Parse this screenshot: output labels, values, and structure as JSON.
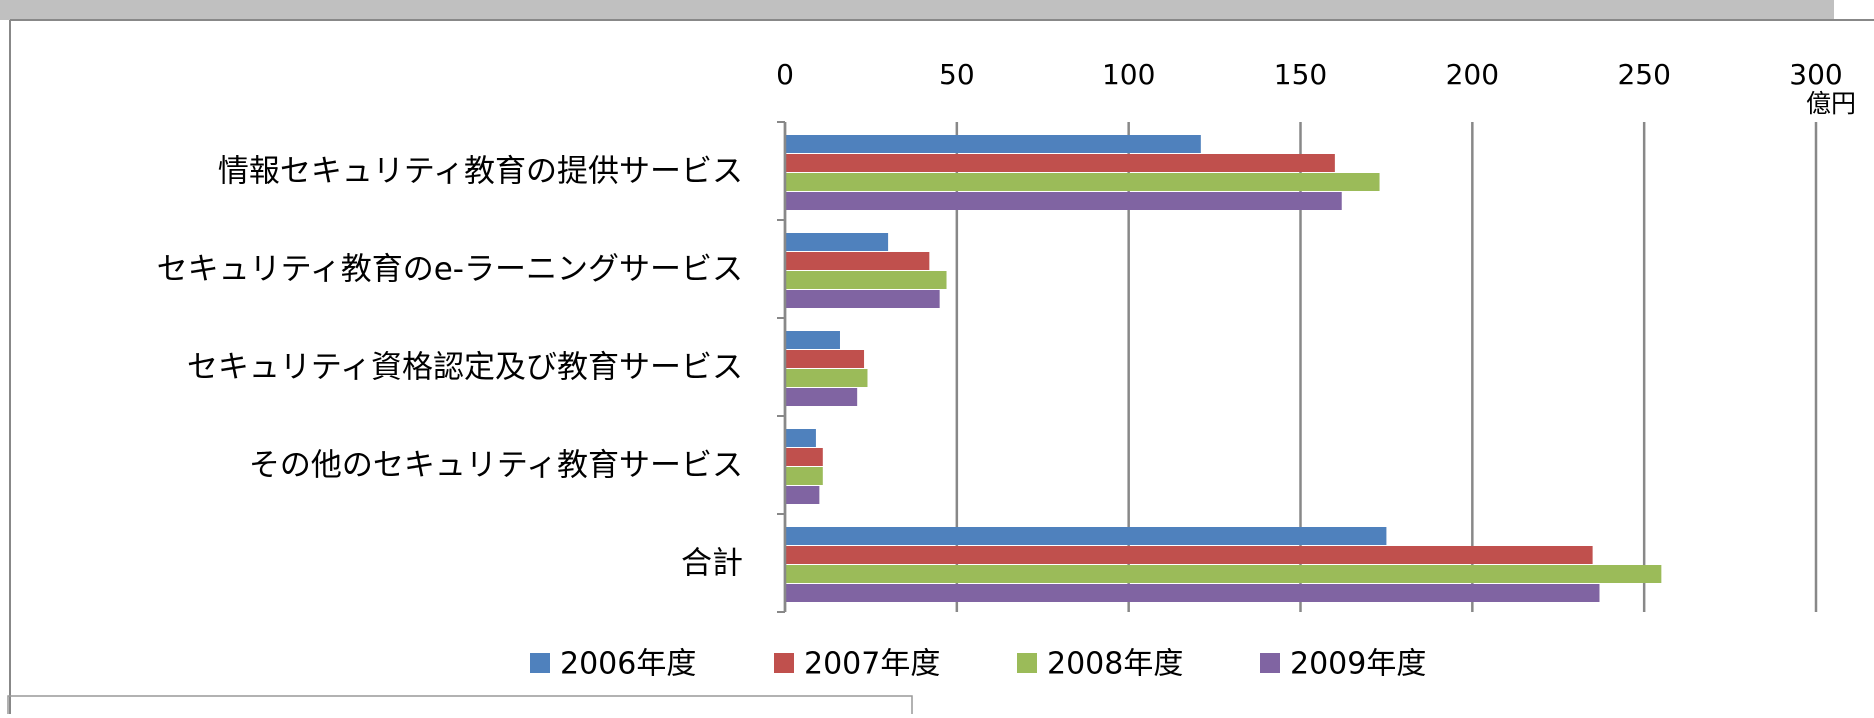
{
  "chart_data": {
    "type": "barh",
    "unit": "億円",
    "categories": [
      "情報セキュリティ教育の提供サービス",
      "セキュリティ教育のe-ラーニングサービス",
      "セキュリティ資格認定及び教育サービス",
      "その他のセキュリティ教育サービス",
      "合計"
    ],
    "series": [
      {
        "name": "2006年度",
        "color": "#4f81bd",
        "values": [
          121,
          30,
          16,
          9,
          175
        ]
      },
      {
        "name": "2007年度",
        "color": "#c0504d",
        "values": [
          160,
          42,
          23,
          11,
          235
        ]
      },
      {
        "name": "2008年度",
        "color": "#9bbb59",
        "values": [
          173,
          47,
          24,
          11,
          255
        ]
      },
      {
        "name": "2009年度",
        "color": "#8064a2",
        "values": [
          162,
          45,
          21,
          10,
          237
        ]
      }
    ],
    "xlim": [
      0,
      300
    ],
    "xticks": [
      0,
      50,
      100,
      150,
      200,
      250,
      300
    ],
    "grid": true,
    "legend": "bottom"
  }
}
